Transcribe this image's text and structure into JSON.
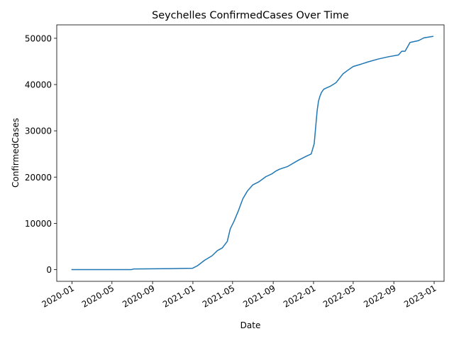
{
  "chart_data": {
    "type": "line",
    "title": "Seychelles  ConfirmedCases Over Time",
    "xlabel": "Date",
    "ylabel": "ConfirmedCases",
    "grid": false,
    "legend": "none",
    "line_color": "#1f77b4",
    "xlim": [
      "2019-11-16",
      "2023-01-31"
    ],
    "ylim": [
      -2530,
      52900
    ],
    "x_ticks": [
      "2020-01",
      "2020-05",
      "2020-09",
      "2021-01",
      "2021-05",
      "2021-09",
      "2022-01",
      "2022-05",
      "2022-09",
      "2023-01"
    ],
    "y_ticks": [
      0,
      10000,
      20000,
      30000,
      40000,
      50000
    ],
    "series": [
      {
        "x": [
          "2020-01-01",
          "2020-06-29",
          "2020-07-05",
          "2020-09-01",
          "2020-10-30",
          "2020-12-31",
          "2021-01-15",
          "2021-02-05",
          "2021-02-28",
          "2021-03-16",
          "2021-03-31",
          "2021-04-15",
          "2021-04-24",
          "2021-05-05",
          "2021-05-18",
          "2021-06-01",
          "2021-06-15",
          "2021-07-01",
          "2021-07-20",
          "2021-08-10",
          "2021-08-28",
          "2021-09-09",
          "2021-09-20",
          "2021-10-15",
          "2021-11-15",
          "2021-12-10",
          "2021-12-25",
          "2022-01-03",
          "2022-01-08",
          "2022-01-12",
          "2022-01-16",
          "2022-01-20",
          "2022-01-25",
          "2022-02-01",
          "2022-02-10",
          "2022-02-20",
          "2022-03-10",
          "2022-03-31",
          "2022-04-15",
          "2022-05-01",
          "2022-05-20",
          "2022-06-15",
          "2022-07-15",
          "2022-08-15",
          "2022-09-15",
          "2022-09-25",
          "2022-10-05",
          "2022-10-20",
          "2022-11-15",
          "2022-12-01",
          "2022-12-28"
        ],
        "y": [
          0,
          0,
          130,
          175,
          220,
          300,
          850,
          2000,
          3000,
          4100,
          4700,
          6100,
          8800,
          10400,
          12600,
          15300,
          17000,
          18300,
          19000,
          20100,
          20700,
          21300,
          21700,
          22300,
          23600,
          24500,
          25000,
          27200,
          31200,
          34400,
          36400,
          37400,
          38300,
          39000,
          39300,
          39600,
          40400,
          42300,
          43100,
          43900,
          44300,
          44900,
          45500,
          46000,
          46400,
          47200,
          47200,
          49100,
          49500,
          50100,
          50400
        ]
      }
    ]
  }
}
